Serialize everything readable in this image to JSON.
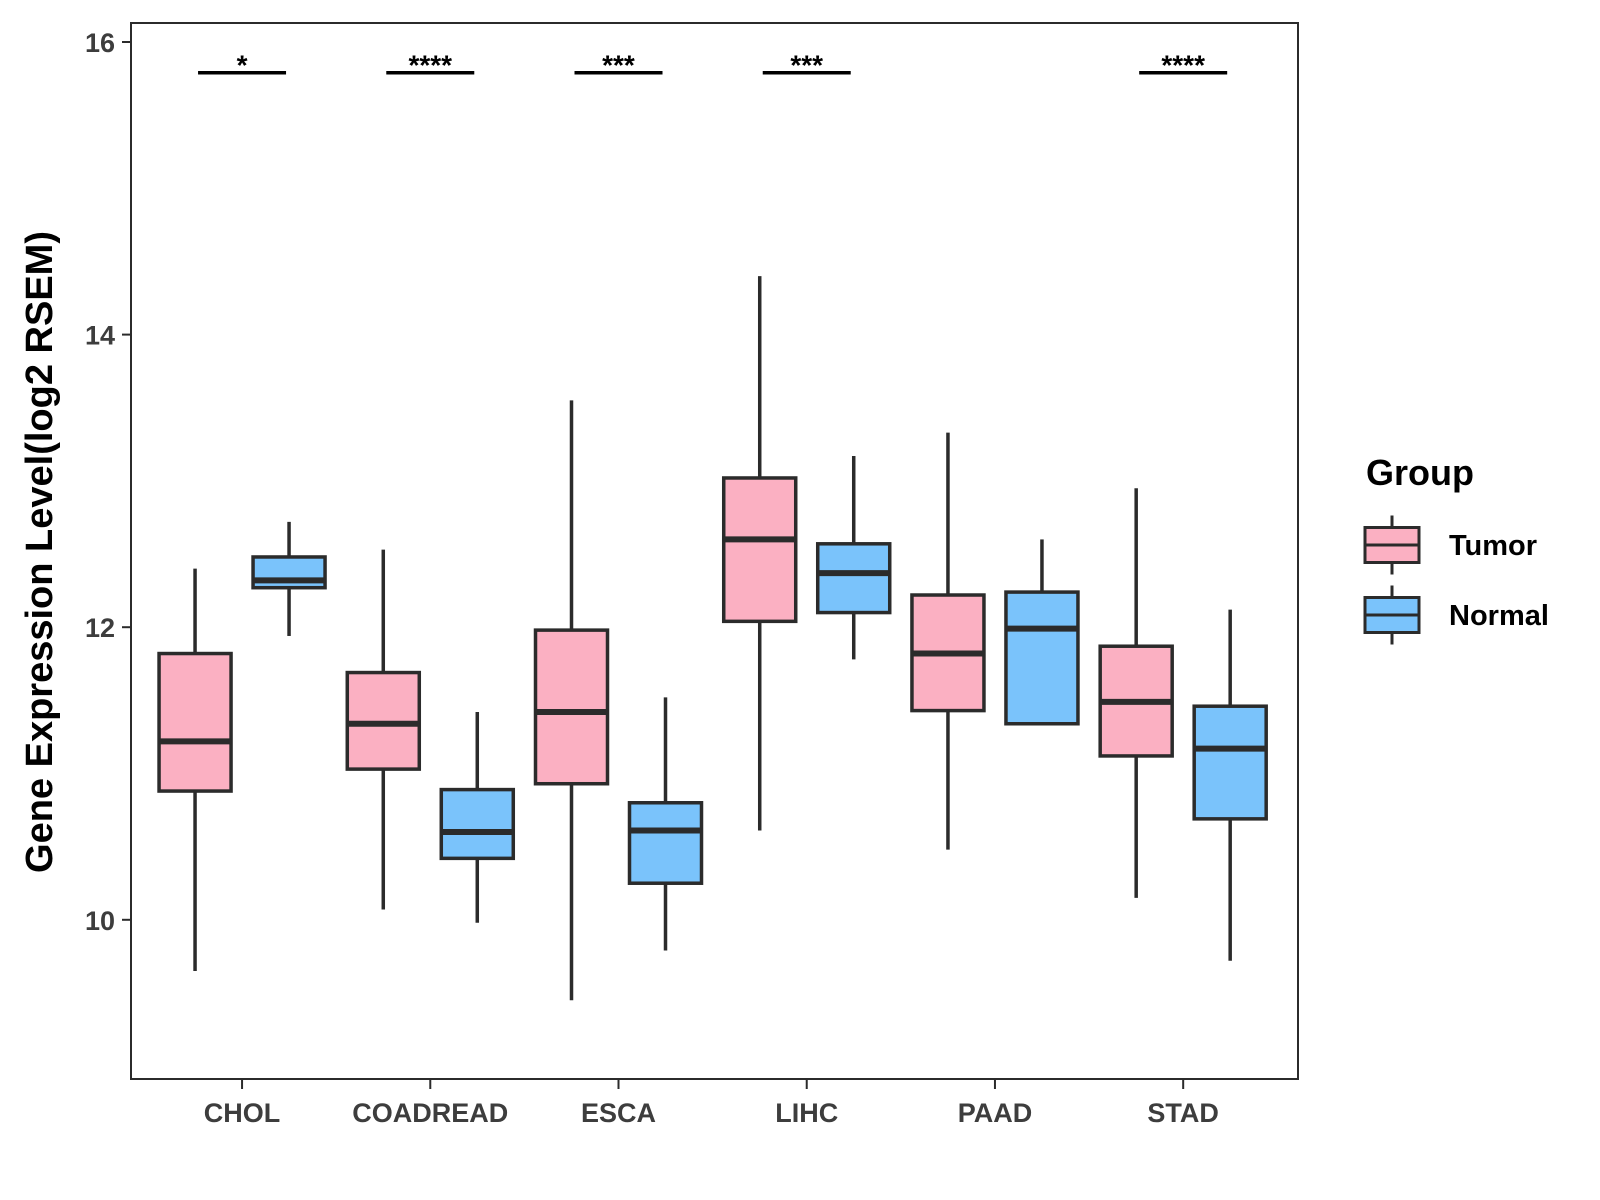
{
  "chart_data": {
    "type": "boxplot",
    "title": "",
    "xlabel": "",
    "ylabel": "Gene Expression Level(log2 RSEM)",
    "ylim": [
      8.9,
      16.1
    ],
    "yticks": [
      10,
      12,
      14,
      16
    ],
    "categories": [
      "CHOL",
      "COADREAD",
      "ESCA",
      "LIHC",
      "PAAD",
      "STAD"
    ],
    "legend": {
      "title": "Group",
      "position": "right"
    },
    "series": [
      {
        "name": "Tumor",
        "color": "#fbb0c2",
        "boxes": [
          {
            "min": 9.65,
            "q1": 10.88,
            "median": 11.22,
            "q3": 11.82,
            "max": 12.4
          },
          {
            "min": 10.07,
            "q1": 11.03,
            "median": 11.34,
            "q3": 11.69,
            "max": 12.53
          },
          {
            "min": 9.45,
            "q1": 10.93,
            "median": 11.42,
            "q3": 11.98,
            "max": 13.55
          },
          {
            "min": 10.61,
            "q1": 12.04,
            "median": 12.6,
            "q3": 13.02,
            "max": 14.4
          },
          {
            "min": 10.48,
            "q1": 11.43,
            "median": 11.82,
            "q3": 12.22,
            "max": 13.33
          },
          {
            "min": 10.15,
            "q1": 11.12,
            "median": 11.49,
            "q3": 11.87,
            "max": 12.95
          }
        ]
      },
      {
        "name": "Normal",
        "color": "#7ac3fb",
        "boxes": [
          {
            "min": 11.94,
            "q1": 12.27,
            "median": 12.32,
            "q3": 12.48,
            "max": 12.72
          },
          {
            "min": 9.98,
            "q1": 10.42,
            "median": 10.6,
            "q3": 10.89,
            "max": 11.42
          },
          {
            "min": 9.79,
            "q1": 10.25,
            "median": 10.61,
            "q3": 10.8,
            "max": 11.52
          },
          {
            "min": 11.78,
            "q1": 12.1,
            "median": 12.37,
            "q3": 12.57,
            "max": 13.17
          },
          {
            "min": 11.34,
            "q1": 11.34,
            "median": 11.99,
            "q3": 12.24,
            "max": 12.6
          },
          {
            "min": 9.72,
            "q1": 10.69,
            "median": 11.17,
            "q3": 11.46,
            "max": 12.12
          }
        ]
      }
    ],
    "significance": [
      "*",
      "****",
      "***",
      "***",
      "",
      "****"
    ],
    "significance_y": 15.79
  }
}
